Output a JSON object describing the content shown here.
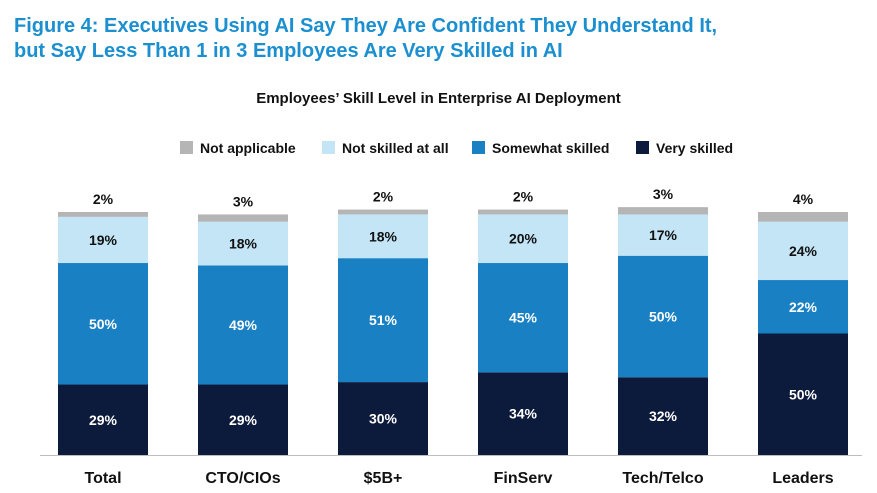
{
  "figure_title_line1": "Figure 4: Executives Using AI Say They Are Confident They Understand It,",
  "figure_title_line2": "but Say Less Than 1 in 3 Employees Are Very Skilled in AI",
  "colors": {
    "title": "#1b8fcf",
    "not_applicable": "#b5b5b5",
    "not_skilled_at_all": "#c3e5f6",
    "somewhat_skilled": "#1a80c4",
    "very_skilled": "#0c1a3c"
  },
  "chart_data": {
    "type": "bar",
    "stacked": true,
    "title": "Employees’ Skill Level in Enterprise AI Deployment",
    "categories": [
      "Total",
      "CTO/CIOs",
      "$5B+",
      "FinServ",
      "Tech/Telco",
      "Leaders"
    ],
    "series": [
      {
        "name": "Very skilled",
        "key": "very_skilled",
        "values": [
          29,
          29,
          30,
          34,
          32,
          50
        ],
        "labels": [
          "29%",
          "29%",
          "30%",
          "34%",
          "32%",
          "50%"
        ]
      },
      {
        "name": "Somewhat skilled",
        "key": "somewhat_skilled",
        "values": [
          50,
          49,
          51,
          45,
          50,
          22
        ],
        "labels": [
          "50%",
          "49%",
          "51%",
          "45%",
          "50%",
          "22%"
        ]
      },
      {
        "name": "Not skilled at all",
        "key": "not_skilled_at_all",
        "values": [
          19,
          18,
          18,
          20,
          17,
          24
        ],
        "labels": [
          "19%",
          "18%",
          "18%",
          "20%",
          "17%",
          "24%"
        ]
      },
      {
        "name": "Not applicable",
        "key": "not_applicable",
        "values": [
          2,
          3,
          2,
          2,
          3,
          4
        ],
        "labels": [
          "2%",
          "3%",
          "2%",
          "2%",
          "3%",
          "4%"
        ]
      }
    ],
    "legend": [
      "Not applicable",
      "Not skilled at all",
      "Somewhat skilled",
      "Very skilled"
    ],
    "legend_position": "top",
    "ylim": [
      0,
      100
    ],
    "grid": false,
    "xlabel": "",
    "ylabel": ""
  }
}
